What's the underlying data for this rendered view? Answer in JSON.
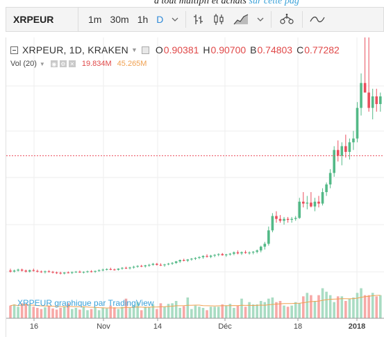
{
  "page": {
    "top_text": "à tout multipli et achats",
    "top_link": "sur cette pag"
  },
  "toolbar": {
    "symbol": "XRPEUR",
    "intervals": [
      "1m",
      "30m",
      "1h",
      "D"
    ],
    "active_interval": "D",
    "icons": [
      "chevron-down-icon",
      "bar-style-icon",
      "candles-style-icon",
      "area-style-icon",
      "chevron-down-icon",
      "compare-icon",
      "indicators-icon"
    ]
  },
  "legend": {
    "title": "XRPEUR, 1D, KRAKEN",
    "open_label": "O",
    "open": "0.90381",
    "high_label": "H",
    "high": "0.90700",
    "low_label": "B",
    "low": "0.74803",
    "close_label": "C",
    "close": "0.77282"
  },
  "volume_legend": {
    "label": "Vol (20)",
    "value1": "19.834M",
    "value2": "45.265M"
  },
  "watermark": "XRPEUR graphique par TradingView",
  "chart_data": {
    "type": "candlestick",
    "x_ticks": [
      "16",
      "Nov",
      "14",
      "Déc",
      "18",
      "2018"
    ],
    "colors": {
      "up": "#53b987",
      "down": "#eb4d5c",
      "vol_up": "#a9dcc3",
      "vol_down": "#f7a9a7",
      "ma": "#f0a050"
    },
    "candles": [
      {
        "o": 0.17,
        "h": 0.18,
        "l": 0.16,
        "c": 0.165
      },
      {
        "o": 0.165,
        "h": 0.175,
        "l": 0.16,
        "c": 0.17
      },
      {
        "o": 0.17,
        "h": 0.18,
        "l": 0.165,
        "c": 0.175
      },
      {
        "o": 0.175,
        "h": 0.18,
        "l": 0.165,
        "c": 0.17
      },
      {
        "o": 0.17,
        "h": 0.175,
        "l": 0.16,
        "c": 0.165
      },
      {
        "o": 0.165,
        "h": 0.175,
        "l": 0.16,
        "c": 0.172
      },
      {
        "o": 0.172,
        "h": 0.18,
        "l": 0.165,
        "c": 0.168
      },
      {
        "o": 0.168,
        "h": 0.175,
        "l": 0.16,
        "c": 0.165
      },
      {
        "o": 0.165,
        "h": 0.17,
        "l": 0.158,
        "c": 0.162
      },
      {
        "o": 0.162,
        "h": 0.17,
        "l": 0.155,
        "c": 0.166
      },
      {
        "o": 0.166,
        "h": 0.172,
        "l": 0.16,
        "c": 0.163
      },
      {
        "o": 0.163,
        "h": 0.168,
        "l": 0.155,
        "c": 0.16
      },
      {
        "o": 0.16,
        "h": 0.165,
        "l": 0.152,
        "c": 0.158
      },
      {
        "o": 0.158,
        "h": 0.164,
        "l": 0.15,
        "c": 0.155
      },
      {
        "o": 0.155,
        "h": 0.162,
        "l": 0.15,
        "c": 0.16
      },
      {
        "o": 0.16,
        "h": 0.166,
        "l": 0.155,
        "c": 0.158
      },
      {
        "o": 0.158,
        "h": 0.165,
        "l": 0.152,
        "c": 0.162
      },
      {
        "o": 0.162,
        "h": 0.168,
        "l": 0.158,
        "c": 0.164
      },
      {
        "o": 0.164,
        "h": 0.17,
        "l": 0.158,
        "c": 0.16
      },
      {
        "o": 0.16,
        "h": 0.166,
        "l": 0.155,
        "c": 0.163
      },
      {
        "o": 0.163,
        "h": 0.17,
        "l": 0.158,
        "c": 0.166
      },
      {
        "o": 0.166,
        "h": 0.172,
        "l": 0.16,
        "c": 0.164
      },
      {
        "o": 0.164,
        "h": 0.17,
        "l": 0.158,
        "c": 0.168
      },
      {
        "o": 0.168,
        "h": 0.176,
        "l": 0.164,
        "c": 0.172
      },
      {
        "o": 0.172,
        "h": 0.18,
        "l": 0.166,
        "c": 0.175
      },
      {
        "o": 0.175,
        "h": 0.182,
        "l": 0.17,
        "c": 0.178
      },
      {
        "o": 0.178,
        "h": 0.185,
        "l": 0.172,
        "c": 0.176
      },
      {
        "o": 0.176,
        "h": 0.18,
        "l": 0.17,
        "c": 0.174
      },
      {
        "o": 0.174,
        "h": 0.182,
        "l": 0.17,
        "c": 0.18
      },
      {
        "o": 0.18,
        "h": 0.188,
        "l": 0.175,
        "c": 0.184
      },
      {
        "o": 0.184,
        "h": 0.19,
        "l": 0.178,
        "c": 0.182
      },
      {
        "o": 0.182,
        "h": 0.19,
        "l": 0.176,
        "c": 0.186
      },
      {
        "o": 0.186,
        "h": 0.195,
        "l": 0.18,
        "c": 0.19
      },
      {
        "o": 0.19,
        "h": 0.198,
        "l": 0.185,
        "c": 0.194
      },
      {
        "o": 0.194,
        "h": 0.2,
        "l": 0.188,
        "c": 0.192
      },
      {
        "o": 0.192,
        "h": 0.2,
        "l": 0.186,
        "c": 0.197
      },
      {
        "o": 0.197,
        "h": 0.205,
        "l": 0.19,
        "c": 0.2
      },
      {
        "o": 0.2,
        "h": 0.21,
        "l": 0.195,
        "c": 0.205
      },
      {
        "o": 0.205,
        "h": 0.21,
        "l": 0.196,
        "c": 0.2
      },
      {
        "o": 0.2,
        "h": 0.208,
        "l": 0.194,
        "c": 0.198
      },
      {
        "o": 0.198,
        "h": 0.205,
        "l": 0.19,
        "c": 0.202
      },
      {
        "o": 0.202,
        "h": 0.21,
        "l": 0.198,
        "c": 0.206
      },
      {
        "o": 0.206,
        "h": 0.214,
        "l": 0.2,
        "c": 0.21
      },
      {
        "o": 0.21,
        "h": 0.22,
        "l": 0.205,
        "c": 0.218
      },
      {
        "o": 0.218,
        "h": 0.228,
        "l": 0.21,
        "c": 0.225
      },
      {
        "o": 0.225,
        "h": 0.232,
        "l": 0.218,
        "c": 0.222
      },
      {
        "o": 0.222,
        "h": 0.23,
        "l": 0.215,
        "c": 0.228
      },
      {
        "o": 0.228,
        "h": 0.236,
        "l": 0.222,
        "c": 0.232
      },
      {
        "o": 0.232,
        "h": 0.24,
        "l": 0.225,
        "c": 0.236
      },
      {
        "o": 0.236,
        "h": 0.245,
        "l": 0.23,
        "c": 0.24
      },
      {
        "o": 0.24,
        "h": 0.25,
        "l": 0.232,
        "c": 0.246
      },
      {
        "o": 0.246,
        "h": 0.255,
        "l": 0.238,
        "c": 0.242
      },
      {
        "o": 0.242,
        "h": 0.252,
        "l": 0.235,
        "c": 0.248
      },
      {
        "o": 0.248,
        "h": 0.256,
        "l": 0.24,
        "c": 0.252
      },
      {
        "o": 0.252,
        "h": 0.26,
        "l": 0.245,
        "c": 0.256
      },
      {
        "o": 0.256,
        "h": 0.262,
        "l": 0.248,
        "c": 0.25
      },
      {
        "o": 0.25,
        "h": 0.258,
        "l": 0.242,
        "c": 0.254
      },
      {
        "o": 0.254,
        "h": 0.262,
        "l": 0.248,
        "c": 0.258
      },
      {
        "o": 0.258,
        "h": 0.27,
        "l": 0.25,
        "c": 0.265
      },
      {
        "o": 0.265,
        "h": 0.275,
        "l": 0.255,
        "c": 0.26
      },
      {
        "o": 0.26,
        "h": 0.27,
        "l": 0.252,
        "c": 0.266
      },
      {
        "o": 0.266,
        "h": 0.275,
        "l": 0.258,
        "c": 0.262
      },
      {
        "o": 0.262,
        "h": 0.27,
        "l": 0.254,
        "c": 0.264
      },
      {
        "o": 0.264,
        "h": 0.272,
        "l": 0.255,
        "c": 0.268
      },
      {
        "o": 0.268,
        "h": 0.28,
        "l": 0.26,
        "c": 0.275
      },
      {
        "o": 0.275,
        "h": 0.3,
        "l": 0.265,
        "c": 0.295
      },
      {
        "o": 0.295,
        "h": 0.32,
        "l": 0.28,
        "c": 0.31
      },
      {
        "o": 0.31,
        "h": 0.4,
        "l": 0.3,
        "c": 0.38
      },
      {
        "o": 0.38,
        "h": 0.47,
        "l": 0.37,
        "c": 0.455
      },
      {
        "o": 0.455,
        "h": 0.48,
        "l": 0.42,
        "c": 0.44
      },
      {
        "o": 0.44,
        "h": 0.46,
        "l": 0.42,
        "c": 0.43
      },
      {
        "o": 0.43,
        "h": 0.45,
        "l": 0.41,
        "c": 0.44
      },
      {
        "o": 0.44,
        "h": 0.45,
        "l": 0.42,
        "c": 0.435
      },
      {
        "o": 0.435,
        "h": 0.45,
        "l": 0.42,
        "c": 0.44
      },
      {
        "o": 0.44,
        "h": 0.455,
        "l": 0.43,
        "c": 0.445
      },
      {
        "o": 0.445,
        "h": 0.55,
        "l": 0.44,
        "c": 0.53
      },
      {
        "o": 0.53,
        "h": 0.58,
        "l": 0.5,
        "c": 0.52
      },
      {
        "o": 0.52,
        "h": 0.56,
        "l": 0.49,
        "c": 0.525
      },
      {
        "o": 0.525,
        "h": 0.58,
        "l": 0.5,
        "c": 0.505
      },
      {
        "o": 0.505,
        "h": 0.55,
        "l": 0.48,
        "c": 0.53
      },
      {
        "o": 0.53,
        "h": 0.56,
        "l": 0.5,
        "c": 0.52
      },
      {
        "o": 0.52,
        "h": 0.6,
        "l": 0.51,
        "c": 0.58
      },
      {
        "o": 0.58,
        "h": 0.63,
        "l": 0.56,
        "c": 0.62
      },
      {
        "o": 0.62,
        "h": 0.7,
        "l": 0.6,
        "c": 0.68
      },
      {
        "o": 0.68,
        "h": 0.82,
        "l": 0.66,
        "c": 0.8
      },
      {
        "o": 0.8,
        "h": 0.85,
        "l": 0.74,
        "c": 0.77
      },
      {
        "o": 0.77,
        "h": 0.84,
        "l": 0.72,
        "c": 0.82
      },
      {
        "o": 0.82,
        "h": 0.88,
        "l": 0.76,
        "c": 0.79
      },
      {
        "o": 0.79,
        "h": 0.86,
        "l": 0.75,
        "c": 0.84
      },
      {
        "o": 0.84,
        "h": 0.9,
        "l": 0.8,
        "c": 0.86
      },
      {
        "o": 0.86,
        "h": 1.05,
        "l": 0.84,
        "c": 1.02
      },
      {
        "o": 1.02,
        "h": 1.2,
        "l": 0.98,
        "c": 1.15
      },
      {
        "o": 1.15,
        "h": 1.4,
        "l": 1.1,
        "c": 1.1
      },
      {
        "o": 1.1,
        "h": 1.4,
        "l": 1.0,
        "c": 1.02
      },
      {
        "o": 1.02,
        "h": 1.12,
        "l": 0.96,
        "c": 1.08
      },
      {
        "o": 1.08,
        "h": 1.12,
        "l": 1.0,
        "c": 1.04
      },
      {
        "o": 1.04,
        "h": 1.1,
        "l": 1.0,
        "c": 1.08
      }
    ],
    "volumes": [
      22,
      24,
      20,
      26,
      25,
      22,
      20,
      18,
      16,
      19,
      21,
      17,
      15,
      18,
      20,
      26,
      16,
      18,
      15,
      20,
      14,
      16,
      19,
      14,
      18,
      17,
      22,
      19,
      16,
      20,
      34,
      18,
      22,
      28,
      14,
      20,
      19,
      24,
      16,
      26,
      20,
      25,
      26,
      30,
      18,
      21,
      36,
      16,
      22,
      20,
      18,
      14,
      20,
      20,
      20,
      24,
      22,
      25,
      18,
      22,
      34,
      20,
      28,
      24,
      24,
      30,
      28,
      34,
      36,
      28,
      30,
      22,
      20,
      22,
      28,
      26,
      38,
      44,
      40,
      30,
      40,
      52,
      46,
      40,
      28,
      38,
      38,
      30,
      34,
      36,
      44,
      52,
      40,
      40,
      44,
      38,
      40
    ]
  }
}
